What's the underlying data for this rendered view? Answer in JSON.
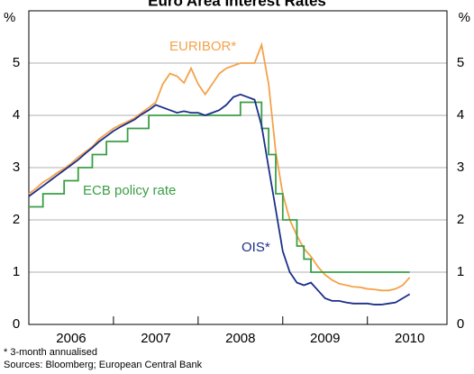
{
  "chart_data": {
    "type": "line",
    "title": "Euro Area Interest Rates",
    "y_unit": "%",
    "footnote": "*   3-month annualised",
    "source": "Sources: Bloomberg; European Central Bank",
    "x": [
      2006.0,
      2006.083,
      2006.167,
      2006.25,
      2006.333,
      2006.417,
      2006.5,
      2006.583,
      2006.667,
      2006.75,
      2006.833,
      2006.917,
      2007.0,
      2007.083,
      2007.167,
      2007.25,
      2007.333,
      2007.417,
      2007.5,
      2007.583,
      2007.667,
      2007.75,
      2007.833,
      2007.917,
      2008.0,
      2008.083,
      2008.167,
      2008.25,
      2008.333,
      2008.417,
      2008.5,
      2008.583,
      2008.667,
      2008.75,
      2008.833,
      2008.917,
      2009.0,
      2009.083,
      2009.167,
      2009.25,
      2009.333,
      2009.417,
      2009.5,
      2009.583,
      2009.667,
      2009.75,
      2009.833,
      2009.917,
      2010.0,
      2010.083,
      2010.167,
      2010.25,
      2010.333,
      2010.417,
      2010.5
    ],
    "series": [
      {
        "name": "EURIBOR*",
        "color": "#f4a24a",
        "values": [
          2.5,
          2.6,
          2.72,
          2.8,
          2.9,
          2.98,
          3.08,
          3.2,
          3.3,
          3.4,
          3.55,
          3.65,
          3.75,
          3.82,
          3.88,
          3.95,
          4.05,
          4.15,
          4.25,
          4.6,
          4.8,
          4.75,
          4.62,
          4.9,
          4.6,
          4.4,
          4.6,
          4.8,
          4.9,
          4.95,
          5.0,
          5.0,
          5.0,
          5.35,
          4.6,
          3.3,
          2.5,
          2.0,
          1.7,
          1.45,
          1.3,
          1.1,
          0.95,
          0.85,
          0.78,
          0.75,
          0.72,
          0.71,
          0.68,
          0.67,
          0.65,
          0.65,
          0.68,
          0.75,
          0.9
        ]
      },
      {
        "name": "ECB policy rate",
        "color": "#3a9e46",
        "step": true,
        "values": [
          2.25,
          2.25,
          2.5,
          2.5,
          2.5,
          2.75,
          2.75,
          3.0,
          3.0,
          3.25,
          3.25,
          3.5,
          3.5,
          3.5,
          3.75,
          3.75,
          3.75,
          4.0,
          4.0,
          4.0,
          4.0,
          4.0,
          4.0,
          4.0,
          4.0,
          4.0,
          4.0,
          4.0,
          4.0,
          4.0,
          4.25,
          4.25,
          4.25,
          3.75,
          3.25,
          2.5,
          2.0,
          2.0,
          1.5,
          1.25,
          1.0,
          1.0,
          1.0,
          1.0,
          1.0,
          1.0,
          1.0,
          1.0,
          1.0,
          1.0,
          1.0,
          1.0,
          1.0,
          1.0,
          1.0
        ]
      },
      {
        "name": "OIS*",
        "color": "#1c2f8a",
        "values": [
          2.45,
          2.55,
          2.65,
          2.75,
          2.85,
          2.95,
          3.05,
          3.15,
          3.27,
          3.38,
          3.5,
          3.6,
          3.7,
          3.78,
          3.85,
          3.92,
          4.02,
          4.1,
          4.2,
          4.15,
          4.1,
          4.05,
          4.08,
          4.05,
          4.05,
          4.0,
          4.05,
          4.1,
          4.2,
          4.35,
          4.4,
          4.35,
          4.3,
          3.8,
          3.0,
          2.2,
          1.4,
          1.0,
          0.8,
          0.75,
          0.8,
          0.65,
          0.5,
          0.45,
          0.45,
          0.42,
          0.4,
          0.4,
          0.4,
          0.38,
          0.38,
          0.4,
          0.42,
          0.5,
          0.58
        ]
      }
    ],
    "xlim": [
      2006,
      2010.94
    ],
    "xticks": [
      {
        "value": 2006.5,
        "label": "2006"
      },
      {
        "value": 2007.5,
        "label": "2007"
      },
      {
        "value": 2008.5,
        "label": "2008"
      },
      {
        "value": 2009.5,
        "label": "2009"
      },
      {
        "value": 2010.5,
        "label": "2010"
      }
    ],
    "xminor": [
      2007,
      2008,
      2009,
      2010
    ],
    "ylim": [
      0,
      6
    ],
    "yticks": [
      0,
      1,
      2,
      3,
      4,
      5
    ],
    "grid": true
  }
}
